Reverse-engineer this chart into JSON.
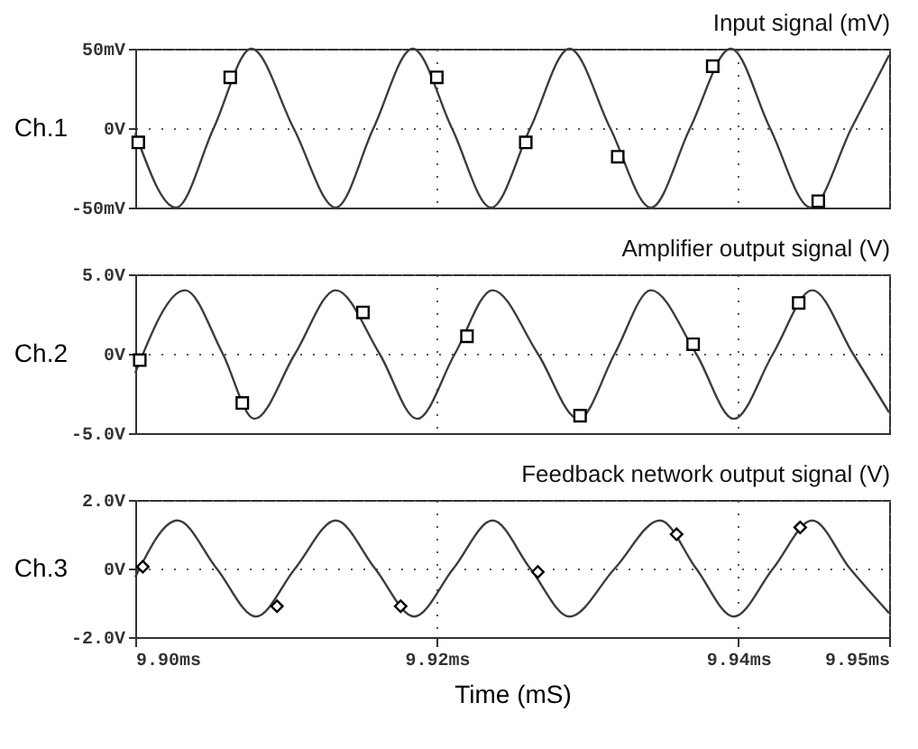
{
  "chart_data": [
    {
      "type": "line",
      "title": "Input signal (mV)",
      "ylabel": "Ch.1",
      "xlim": [
        9.9,
        9.95
      ],
      "ylim": [
        -50,
        50
      ],
      "xticks": [
        9.9,
        9.92,
        9.94,
        9.95
      ],
      "yticks": [
        {
          "value": -50,
          "label": "-50mV"
        },
        {
          "value": 0,
          "label": "0V"
        },
        {
          "value": 50,
          "label": "50mV"
        }
      ],
      "tick_labels": "y",
      "grid": true,
      "series": [
        {
          "type": "line",
          "color": "#3c3c3c",
          "marker": "none",
          "x": [
            9.9,
            9.9027,
            9.9052,
            9.9077,
            9.9105,
            9.9133,
            9.9158,
            9.9184,
            9.921,
            9.9236,
            9.9262,
            9.9288,
            9.9315,
            9.9342,
            9.9368,
            9.9395,
            9.9421,
            9.9448,
            9.9475,
            9.95
          ],
          "values": [
            -3,
            -50,
            0,
            50,
            0,
            -50,
            0,
            50,
            0,
            -50,
            0,
            50,
            0,
            -50,
            0,
            50,
            0,
            -50,
            0,
            46
          ]
        },
        {
          "type": "scatter",
          "color": "#000000",
          "marker": "square",
          "x": [
            9.9002,
            9.9063,
            9.92,
            9.9259,
            9.932,
            9.9383,
            9.9453
          ],
          "values": [
            -9,
            32,
            32,
            -9,
            -18,
            39,
            -46
          ]
        }
      ]
    },
    {
      "type": "line",
      "title": "Amplifier output signal (V)",
      "ylabel": "Ch.2",
      "xlim": [
        9.9,
        9.95
      ],
      "ylim": [
        -5,
        5
      ],
      "xticks": [
        9.9,
        9.92,
        9.94,
        9.95
      ],
      "yticks": [
        {
          "value": -5,
          "label": "-5.0V"
        },
        {
          "value": 0,
          "label": "0V"
        },
        {
          "value": 5,
          "label": "5.0V"
        }
      ],
      "tick_labels": "y",
      "grid": true,
      "series": [
        {
          "type": "line",
          "color": "#3c3c3c",
          "marker": "none",
          "x": [
            9.9,
            9.9033,
            9.9058,
            9.9079,
            9.9106,
            9.9133,
            9.9162,
            9.9187,
            9.9212,
            9.9237,
            9.9267,
            9.9294,
            9.9318,
            9.9342,
            9.9372,
            9.9397,
            9.9423,
            9.9449,
            9.9476,
            9.95
          ],
          "values": [
            -1.2,
            4,
            0,
            -4.1,
            0,
            4,
            0,
            -4.1,
            0,
            4,
            0,
            -4.1,
            0,
            4,
            0,
            -4.1,
            0,
            4,
            0,
            -3.7
          ]
        },
        {
          "type": "scatter",
          "color": "#000000",
          "marker": "square",
          "x": [
            9.9003,
            9.9071,
            9.9151,
            9.922,
            9.9295,
            9.937,
            9.944
          ],
          "values": [
            -0.4,
            -3.1,
            2.6,
            1.1,
            -3.9,
            0.6,
            3.2
          ]
        }
      ]
    },
    {
      "type": "line",
      "title": "Feedback network output signal (V)",
      "ylabel": "Ch.3",
      "xlabel": "Time (mS)",
      "xlim": [
        9.9,
        9.95
      ],
      "ylim": [
        -2,
        2
      ],
      "xticks": [
        {
          "value": 9.9,
          "label": "9.90ms"
        },
        {
          "value": 9.92,
          "label": "9.92ms"
        },
        {
          "value": 9.94,
          "label": "9.94ms"
        },
        {
          "value": 9.95,
          "label": "9.95ms"
        }
      ],
      "yticks": [
        {
          "value": -2,
          "label": "-2.0V"
        },
        {
          "value": 0,
          "label": "0V"
        },
        {
          "value": 2,
          "label": "2.0V"
        }
      ],
      "grid": true,
      "series": [
        {
          "type": "line",
          "color": "#3c3c3c",
          "marker": "none",
          "x": [
            9.9,
            9.9028,
            9.9054,
            9.908,
            9.9106,
            9.9133,
            9.9159,
            9.9185,
            9.9211,
            9.9237,
            9.9262,
            9.9288,
            9.9318,
            9.9348,
            9.9372,
            9.9397,
            9.9423,
            9.9449,
            9.9474,
            9.95
          ],
          "values": [
            -0.25,
            1.4,
            0,
            -1.4,
            0,
            1.4,
            0,
            -1.4,
            0,
            1.4,
            0,
            -1.4,
            0,
            1.4,
            0,
            -1.4,
            0,
            1.4,
            0,
            -1.3
          ]
        },
        {
          "type": "scatter",
          "color": "#000000",
          "marker": "diamond",
          "x": [
            9.9005,
            9.9094,
            9.9176,
            9.9267,
            9.9359,
            9.9441
          ],
          "values": [
            0.05,
            -1.1,
            -1.1,
            -0.1,
            1.0,
            1.2
          ]
        }
      ]
    }
  ]
}
